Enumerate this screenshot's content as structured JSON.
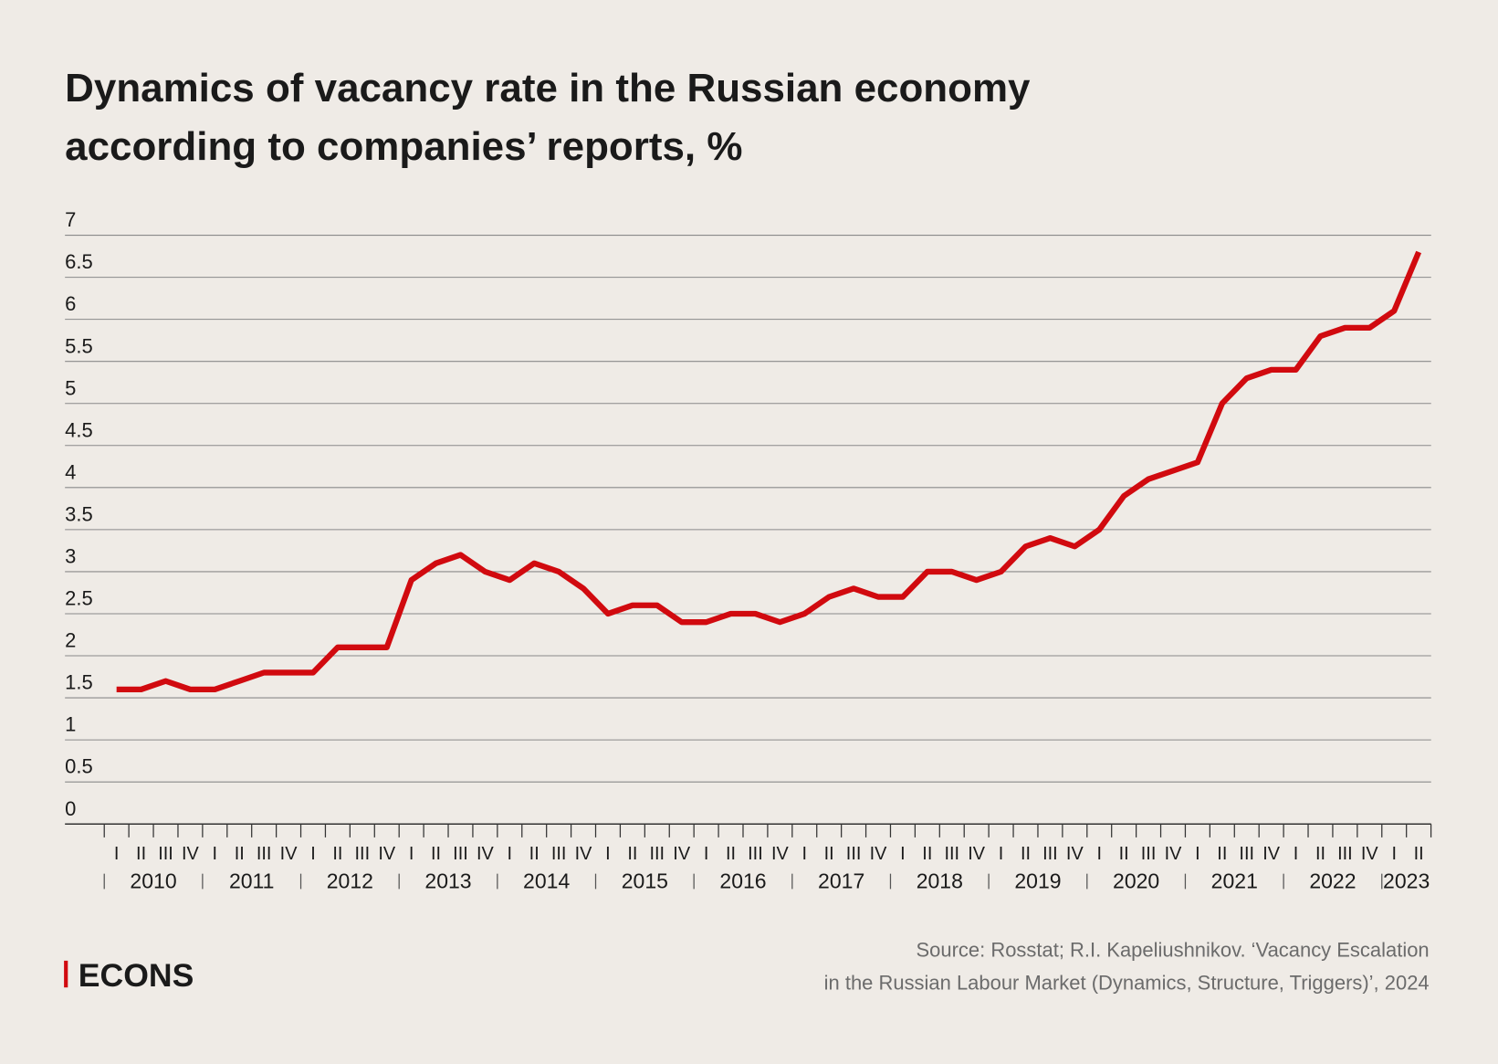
{
  "chart_data": {
    "type": "line",
    "title": [
      "Dynamics of vacancy rate in the Russian economy",
      "according to companies’ reports, %"
    ],
    "categories": [
      "I",
      "II",
      "III",
      "IV",
      "I",
      "II",
      "III",
      "IV",
      "I",
      "II",
      "III",
      "IV",
      "I",
      "II",
      "III",
      "IV",
      "I",
      "II",
      "III",
      "IV",
      "I",
      "II",
      "III",
      "IV",
      "I",
      "II",
      "III",
      "IV",
      "I",
      "II",
      "III",
      "IV",
      "I",
      "II",
      "III",
      "IV",
      "I",
      "II",
      "III",
      "IV",
      "I",
      "II",
      "III",
      "IV",
      "I",
      "II",
      "III",
      "IV",
      "I",
      "II",
      "III",
      "IV",
      "I",
      "II"
    ],
    "years": [
      "2010",
      "2011",
      "2012",
      "2013",
      "2014",
      "2015",
      "2016",
      "2017",
      "2018",
      "2019",
      "2020",
      "2021",
      "2022",
      "2023"
    ],
    "values": [
      1.6,
      1.6,
      1.7,
      1.6,
      1.6,
      1.7,
      1.8,
      1.8,
      1.8,
      2.1,
      2.1,
      2.1,
      2.9,
      3.1,
      3.2,
      3.0,
      2.9,
      3.1,
      3.0,
      2.8,
      2.5,
      2.6,
      2.6,
      2.4,
      2.4,
      2.5,
      2.5,
      2.4,
      2.5,
      2.7,
      2.8,
      2.7,
      2.7,
      3.0,
      3.0,
      2.9,
      3.0,
      3.3,
      3.4,
      3.3,
      3.5,
      3.9,
      4.1,
      4.2,
      4.3,
      5.0,
      5.3,
      5.4,
      5.4,
      5.8,
      5.9,
      5.9,
      6.1,
      6.8
    ],
    "color": "#d10a0f",
    "ylim": [
      0,
      7
    ],
    "yticks": [
      0,
      0.5,
      1,
      1.5,
      2,
      2.5,
      3,
      3.5,
      4,
      4.5,
      5,
      5.5,
      6,
      6.5,
      7
    ],
    "grid": true,
    "source": [
      "Source: Rosstat; R.I. Kapeliushnikov. ‘Vacancy Escalation",
      "in the Russian Labour Market (Dynamics, Structure, Triggers)’, 2024"
    ],
    "logo": "ECONS"
  }
}
